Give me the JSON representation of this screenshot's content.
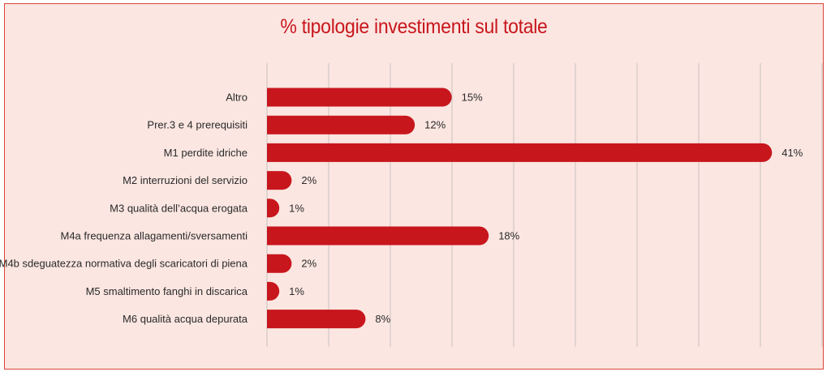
{
  "chart_data": {
    "type": "bar",
    "orientation": "horizontal",
    "title": "% tipologie investimenti sul totale",
    "categories": [
      "Altro",
      "Prer.3 e 4 prerequisiti",
      "M1 perdite idriche",
      "M2 interruzioni del servizio",
      "M3 qualità dell’acqua erogata",
      "M4a frequenza allagamenti/sversamenti",
      "M4b sdeguatezza normativa degli scaricatori di piena",
      "M5 smaltimento fanghi in discarica",
      "M6 qualità acqua depurata"
    ],
    "values": [
      15,
      12,
      41,
      2,
      1,
      18,
      2,
      1,
      8
    ],
    "value_labels": [
      "15%",
      "12%",
      "41%",
      "2%",
      "1%",
      "18%",
      "2%",
      "1%",
      "8%"
    ],
    "xlim": [
      0,
      45
    ],
    "grid": true,
    "bar_color": "#c8161d",
    "background_color": "#fbe6e1"
  }
}
